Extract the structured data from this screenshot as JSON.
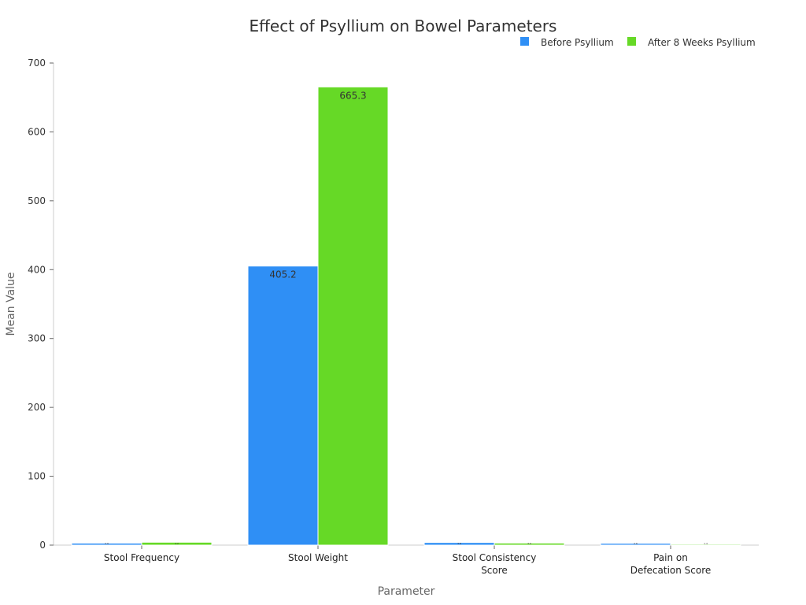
{
  "chart_data": {
    "type": "bar",
    "title": "Effect of Psyllium on Bowel Parameters",
    "xlabel": "Parameter",
    "ylabel": "Mean Value",
    "ylim": [
      0,
      700
    ],
    "yticks": [
      0,
      100,
      200,
      300,
      400,
      500,
      600,
      700
    ],
    "categories": [
      [
        "Stool Frequency"
      ],
      [
        "Stool Weight"
      ],
      [
        "Stool Consistency",
        "Score"
      ],
      [
        "Pain on",
        "Defecation Score"
      ]
    ],
    "series": [
      {
        "name": "Before Psyllium",
        "color": "#2f8ff5",
        "values": [
          2.9,
          405.2,
          3.8,
          2.6
        ]
      },
      {
        "name": "After 8 Weeks Psyllium",
        "color": "#66d926",
        "values": [
          4.2,
          665.3,
          3.0,
          1.4
        ]
      }
    ],
    "legend": "top-right",
    "grid": false
  }
}
